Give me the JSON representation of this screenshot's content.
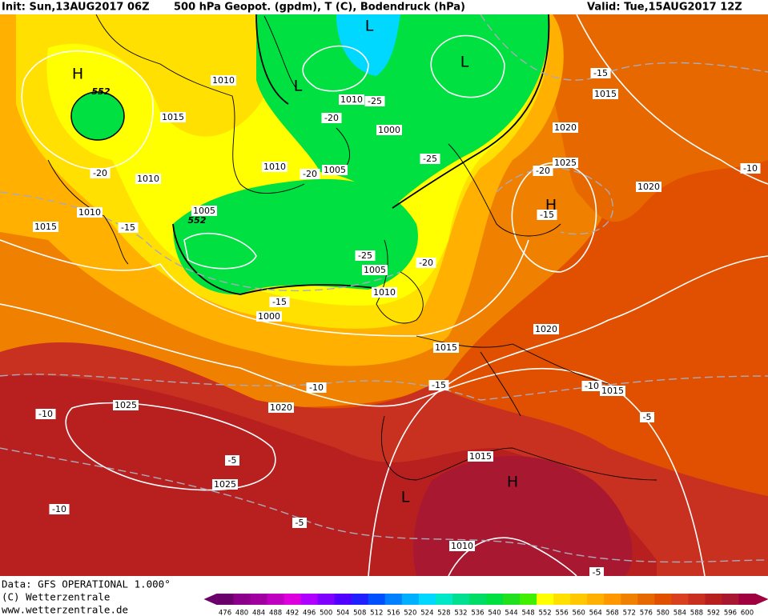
{
  "header": {
    "init": "Init: Sun,13AUG2017 06Z",
    "title": "500 hPa Geopot. (gpdm), T (C), Bodendruck (hPa)",
    "valid": "Valid: Tue,15AUG2017 12Z"
  },
  "map": {
    "centers": [
      "H",
      "L",
      "L",
      "L",
      "H",
      "H",
      "L"
    ],
    "labels": [
      "552",
      "552",
      "1010",
      "1015",
      "-20",
      "1010",
      "1010",
      "1015",
      "-15",
      "1010",
      "-25",
      "-20",
      "1000",
      "1010",
      "-20",
      "1005",
      "1005",
      "-25",
      "-15",
      "1015",
      "1020",
      "1025",
      "-20",
      "1020",
      "-10",
      "-15",
      "-25",
      "-20",
      "1005",
      "1010",
      "-15",
      "1000",
      "1020",
      "1015",
      "-10",
      "-15",
      "1025",
      "1020",
      "-10",
      "-10",
      "1015",
      "-5",
      "-5",
      "1025",
      "1015",
      "-10",
      "-5",
      "1010",
      "-5"
    ]
  },
  "footer": {
    "source": "Data: GFS OPERATIONAL 1.000°",
    "copyright": "(C) Wetterzentrale",
    "url": "www.wetterzentrale.de"
  },
  "legend": {
    "levels": [
      476,
      480,
      484,
      488,
      492,
      496,
      500,
      504,
      508,
      512,
      516,
      520,
      524,
      528,
      532,
      536,
      540,
      544,
      548,
      552,
      556,
      560,
      564,
      568,
      572,
      576,
      580,
      584,
      588,
      592,
      596,
      600
    ]
  }
}
